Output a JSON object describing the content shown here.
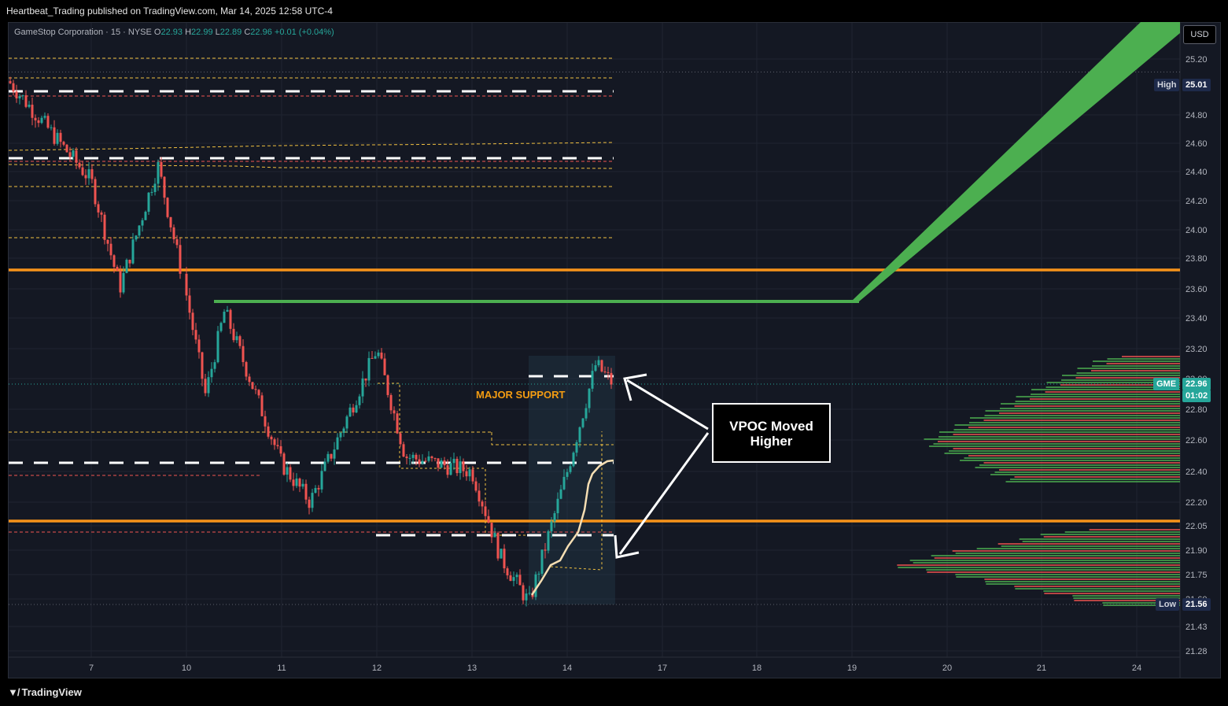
{
  "header": {
    "publisher_line": "Heartbeat_Trading published on TradingView.com, Mar 14, 2025 12:58 UTC-4"
  },
  "legend": {
    "symbol": "GameStop Corporation · 15 · NYSE",
    "o_label": "O",
    "o": "22.93",
    "h_label": "H",
    "h": "22.99",
    "l_label": "L",
    "l": "22.89",
    "c_label": "C",
    "c": "22.96",
    "change": "+0.01 (+0.04%)"
  },
  "currency_button": "USD",
  "footer": {
    "brand": "TradingView"
  },
  "annotations": {
    "major_support": "MAJOR SUPPORT",
    "callout": "VPOC Moved\nHigher"
  },
  "tags": {
    "high_label": "High",
    "high_value": "25.01",
    "low_label": "Low",
    "low_value": "21.56",
    "symbol_label": "GME",
    "last_price": "22.96",
    "countdown": "01:02"
  },
  "colors": {
    "background": "#141823",
    "up": "#26a69a",
    "down": "#ef5350",
    "orange_level": "#f7931a",
    "green_projection": "#4caf50",
    "support_text": "#f39c12",
    "grid": "#1f2430"
  },
  "chart_data": {
    "type": "candlestick",
    "symbol": "GME",
    "timeframe": "15",
    "x_tick_labels": [
      "7",
      "10",
      "11",
      "12",
      "13",
      "14",
      "17",
      "18",
      "19",
      "20",
      "21",
      "24"
    ],
    "y_tick_labels": [
      "25.20",
      "24.80",
      "24.60",
      "24.40",
      "24.20",
      "24.00",
      "23.80",
      "23.60",
      "23.40",
      "23.20",
      "23.00",
      "22.80",
      "22.60",
      "22.40",
      "22.20",
      "22.05",
      "21.90",
      "21.75",
      "21.60",
      "21.43",
      "21.28"
    ],
    "session_high": 25.01,
    "session_low": 21.56,
    "last_price": 22.96,
    "key_levels": [
      {
        "type": "resistance",
        "price": 23.71,
        "color": "#f7931a"
      },
      {
        "type": "support",
        "price": 22.08,
        "color": "#f7931a"
      },
      {
        "type": "projection_base",
        "price": 23.5,
        "color": "#4caf50"
      }
    ],
    "price_path": [
      {
        "x": "6",
        "price": 24.95
      },
      {
        "x": "7",
        "price": 24.3
      },
      {
        "x": "7.3",
        "price": 23.6
      },
      {
        "x": "7.7",
        "price": 24.4
      },
      {
        "x": "10",
        "price": 23.55
      },
      {
        "x": "10.2",
        "price": 22.9
      },
      {
        "x": "10.4",
        "price": 23.45
      },
      {
        "x": "11",
        "price": 22.45
      },
      {
        "x": "11.3",
        "price": 22.2
      },
      {
        "x": "12",
        "price": 23.2
      },
      {
        "x": "12.3",
        "price": 22.5
      },
      {
        "x": "13",
        "price": 22.4
      },
      {
        "x": "13.3",
        "price": 21.85
      },
      {
        "x": "13.6",
        "price": 21.56
      },
      {
        "x": "14",
        "price": 22.4
      },
      {
        "x": "14.3",
        "price": 23.1
      },
      {
        "x": "14.5",
        "price": 22.96
      }
    ]
  }
}
